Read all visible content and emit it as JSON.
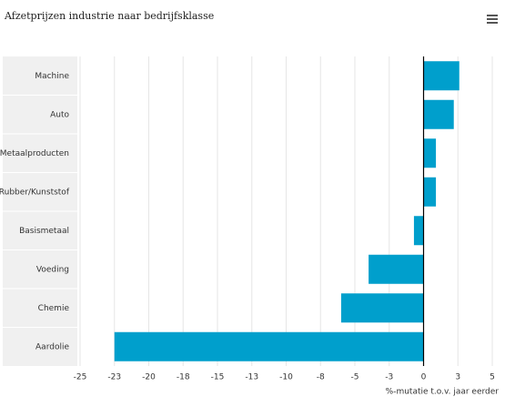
{
  "chart_data": {
    "type": "bar",
    "orientation": "horizontal",
    "title": "Afzetprijzen industrie naar bedrijfsklasse",
    "x_label": "%-mutatie t.o.v. jaar eerder",
    "categories": [
      "Machine",
      "Auto",
      "Metaalproducten",
      "Rubber/Kunststof",
      "Basismetaal",
      "Voeding",
      "Chemie",
      "Aardolie"
    ],
    "values": [
      2.6,
      2.2,
      0.9,
      0.9,
      -0.7,
      -4.0,
      -6.0,
      -22.5
    ],
    "color": "#009fcc",
    "xlim": [
      -25,
      5
    ],
    "xticks": [
      -25,
      {
        "value": -22.5,
        "label": "-23"
      },
      -20,
      {
        "value": -17.5,
        "label": "-18"
      },
      -15,
      {
        "value": -12.5,
        "label": "-13"
      },
      -10,
      {
        "value": -7.5,
        "label": "-8"
      },
      -5,
      {
        "value": -2.5,
        "label": "-3"
      },
      0,
      {
        "value": 2.5,
        "label": "3"
      },
      5
    ],
    "grid": true
  }
}
